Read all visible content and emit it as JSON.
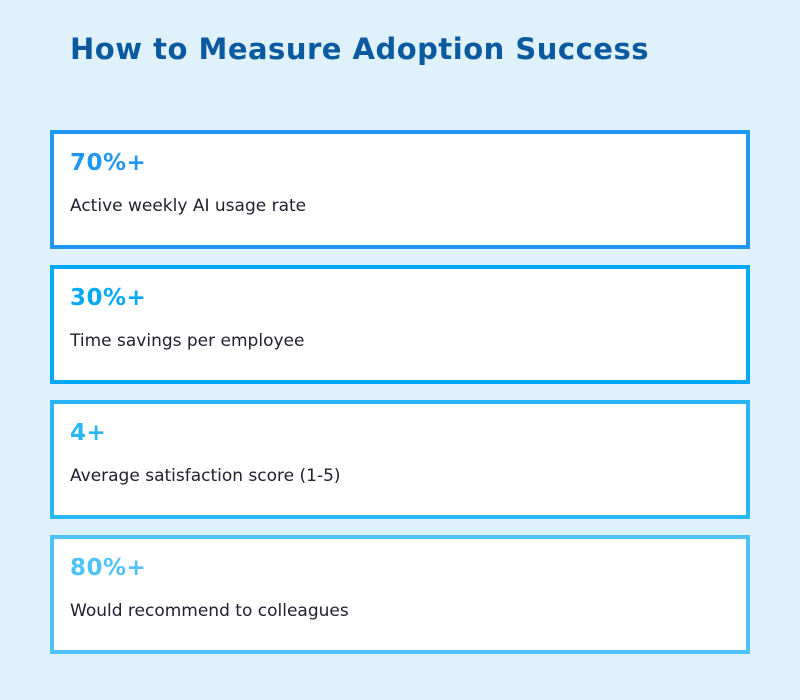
{
  "page": {
    "title": "How to Measure Adoption Success",
    "background_color": "#DFF2FB",
    "title_color": "#0B5AA0",
    "label_color": "#21212F"
  },
  "metrics": [
    {
      "value": "70%+",
      "label": "Active weekly AI usage rate",
      "accent_color": "#2196F3"
    },
    {
      "value": "30%+",
      "label": "Time savings per employee",
      "accent_color": "#03A9F4"
    },
    {
      "value": "4+",
      "label": "Average satisfaction score (1-5)",
      "accent_color": "#29B6F6"
    },
    {
      "value": "80%+",
      "label": "Would recommend to colleagues",
      "accent_color": "#4FC3F7"
    }
  ]
}
